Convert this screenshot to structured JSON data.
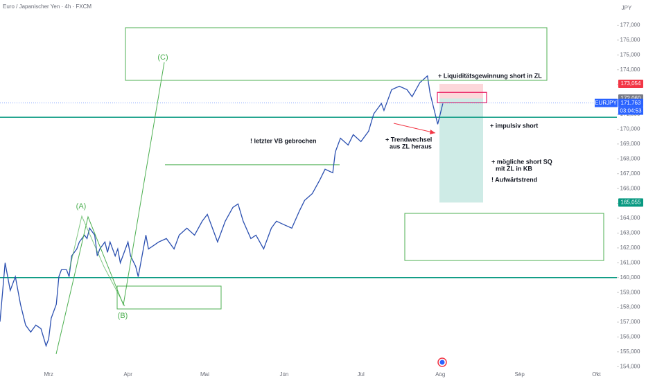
{
  "chart_data": {
    "type": "line",
    "title": "Euro / Japanischer Yen · 4h · FXCM",
    "currency": "JPY",
    "symbol": "EURJPY",
    "countdown": "03:04:53",
    "series": [
      {
        "name": "EURJPY",
        "color": "#2a4fb0",
        "x": [
          42,
          44,
          46,
          48,
          50,
          52,
          54,
          56,
          58,
          60,
          61,
          62,
          64,
          65,
          66,
          68,
          69,
          70,
          72,
          73,
          75,
          76,
          77,
          79,
          80,
          81,
          83,
          84,
          85,
          87,
          88,
          89,
          91,
          92,
          93,
          95,
          96,
          98,
          99,
          100,
          102,
          104,
          107,
          110,
          112,
          115,
          118,
          121,
          123,
          125,
          127,
          130,
          133,
          135,
          137,
          140,
          142,
          145,
          148,
          150,
          153,
          156,
          159,
          161,
          164,
          167,
          169,
          172,
          173,
          175,
          178,
          180,
          183,
          186,
          188,
          191,
          192,
          195,
          198,
          201,
          203,
          206,
          209,
          210,
          211,
          213,
          214,
          215
        ],
        "values": [
          157030,
          160996,
          159130,
          160060,
          158200,
          156800,
          156330,
          156800,
          156560,
          155400,
          155860,
          157260,
          158200,
          160060,
          160530,
          160530,
          160060,
          161460,
          161930,
          162400,
          162860,
          162630,
          163330,
          162860,
          161460,
          161930,
          162400,
          161700,
          162400,
          161460,
          161930,
          160996,
          161930,
          162400,
          161460,
          160760,
          160060,
          161930,
          162860,
          161930,
          162160,
          162400,
          162630,
          161930,
          162860,
          163330,
          162860,
          163800,
          164260,
          163330,
          162400,
          163800,
          164730,
          164960,
          163800,
          162630,
          162860,
          161930,
          163330,
          163800,
          163560,
          163330,
          164500,
          165200,
          165660,
          166600,
          167300,
          167060,
          168460,
          169390,
          168930,
          169630,
          169160,
          169860,
          171030,
          171730,
          171260,
          172660,
          172890,
          172660,
          172190,
          173130,
          173590,
          172430,
          171730,
          170330,
          171030,
          171730
        ]
      }
    ],
    "xlim": [
      42,
      283
    ],
    "xticks": [
      {
        "value": 61,
        "label": "Mrz"
      },
      {
        "value": 92,
        "label": "Apr"
      },
      {
        "value": 122,
        "label": "Mai"
      },
      {
        "value": 153,
        "label": "Jun"
      },
      {
        "value": 183,
        "label": "Jul"
      },
      {
        "value": 214,
        "label": "Aug"
      },
      {
        "value": 245,
        "label": "Sep"
      },
      {
        "value": 275,
        "label": "Okt"
      }
    ],
    "ylim": [
      153500,
      178700
    ],
    "yticks": [
      {
        "value": 154000,
        "label": "154,000"
      },
      {
        "value": 155000,
        "label": "155,000"
      },
      {
        "value": 156000,
        "label": "156,000"
      },
      {
        "value": 157000,
        "label": "157,000"
      },
      {
        "value": 158000,
        "label": "158,000"
      },
      {
        "value": 159000,
        "label": "159,000"
      },
      {
        "value": 160000,
        "label": "160,000"
      },
      {
        "value": 161000,
        "label": "161,000"
      },
      {
        "value": 162000,
        "label": "162,000"
      },
      {
        "value": 163000,
        "label": "163,000"
      },
      {
        "value": 164000,
        "label": "164,000"
      },
      {
        "value": 165000,
        "label": "165,000"
      },
      {
        "value": 166000,
        "label": "166,000"
      },
      {
        "value": 167000,
        "label": "167,000"
      },
      {
        "value": 168000,
        "label": "168,000"
      },
      {
        "value": 169000,
        "label": "169,000"
      },
      {
        "value": 170000,
        "label": "170,000"
      },
      {
        "value": 171000,
        "label": "171,000"
      },
      {
        "value": 172000,
        "label": "172,000"
      },
      {
        "value": 173000,
        "label": "173,000"
      },
      {
        "value": 174000,
        "label": "174,000"
      },
      {
        "value": 175000,
        "label": "175,000"
      },
      {
        "value": 176000,
        "label": "176,000"
      },
      {
        "value": 177000,
        "label": "177,000"
      }
    ],
    "price_labels": [
      {
        "value": 173054,
        "label": "173,054",
        "color": "#f23645"
      },
      {
        "value": 172060,
        "label": "172,060",
        "color": "#787b86"
      },
      {
        "value": 171763,
        "label": "171,763",
        "color": "#2962ff"
      },
      {
        "value": 165055,
        "label": "165,055",
        "color": "#089981"
      }
    ],
    "hlines": [
      170800,
      160000
    ],
    "level_line": 167600,
    "annotations": [
      "+ Liquiditätsgewinnung short in ZL",
      "+ impulsiv short",
      "! letzter VB gebrochen",
      "+ Trendwechsel",
      "aus ZL heraus",
      "+ mögliche short SQ",
      "mit ZL in KB",
      "! Aufwärtstrend",
      "(A)",
      "(B)",
      "(C)"
    ]
  }
}
